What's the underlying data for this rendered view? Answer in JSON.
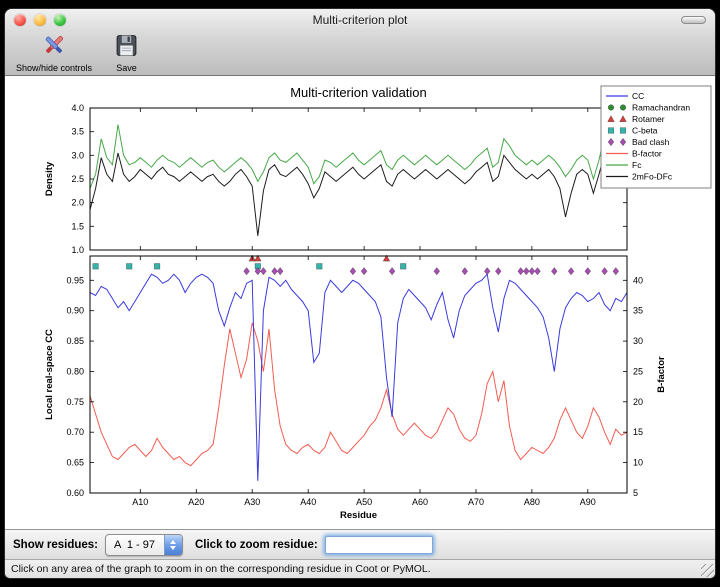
{
  "window": {
    "title": "Multi-criterion plot"
  },
  "toolbar": {
    "buttons": [
      {
        "label": "Show/hide controls",
        "icon": "tools-icon"
      },
      {
        "label": "Save",
        "icon": "save-icon"
      }
    ]
  },
  "controls": {
    "show_residues_label": "Show residues:",
    "residue_range_value": "A  1 - 97",
    "zoom_label": "Click to zoom residue:",
    "zoom_input_value": ""
  },
  "status_bar": {
    "text": "Click on any area of the graph to zoom in on the corresponding residue in Coot or PyMOL."
  },
  "chart_data": {
    "type": "line",
    "title": "Multi-criterion validation",
    "x_range": [
      1,
      97
    ],
    "xlabel": "Residue",
    "x_ticks": [
      {
        "v": 10,
        "label": "A10"
      },
      {
        "v": 20,
        "label": "A20"
      },
      {
        "v": 30,
        "label": "A30"
      },
      {
        "v": 40,
        "label": "A40"
      },
      {
        "v": 50,
        "label": "A50"
      },
      {
        "v": 60,
        "label": "A60"
      },
      {
        "v": 70,
        "label": "A70"
      },
      {
        "v": 80,
        "label": "A80"
      },
      {
        "v": 90,
        "label": "A90"
      }
    ],
    "legend_position": "upper right",
    "legend": [
      {
        "label": "CC",
        "glyph": "line",
        "color": "#3a3ae0"
      },
      {
        "label": "Ramachandran",
        "glyph": "circle",
        "color": "#2e8b2e"
      },
      {
        "label": "Rotamer",
        "glyph": "triangle",
        "color": "#d24040"
      },
      {
        "label": "C-beta",
        "glyph": "square",
        "color": "#36b3ab"
      },
      {
        "label": "Bad clash",
        "glyph": "diamond",
        "color": "#a44fae"
      },
      {
        "label": "B-factor",
        "glyph": "line",
        "color": "#f25c52"
      },
      {
        "label": "Fc",
        "glyph": "line",
        "color": "#47a847"
      },
      {
        "label": "2mFo-DFc",
        "glyph": "line",
        "color": "#1c1c1c"
      }
    ],
    "top": {
      "ylabel": "Density",
      "ylim": [
        1.0,
        4.0
      ],
      "yticks": [
        {
          "v": 4.0,
          "label": "4.0"
        },
        {
          "v": 3.5,
          "label": "3.5"
        },
        {
          "v": 3.0,
          "label": "3.0"
        },
        {
          "v": 2.5,
          "label": "2.5"
        },
        {
          "v": 2.0,
          "label": "2.0"
        },
        {
          "v": 1.5,
          "label": "1.5"
        },
        {
          "v": 1.0,
          "label": "1.0"
        }
      ],
      "series": [
        {
          "name": "Fc",
          "color": "#47a847",
          "values": [
            2.3,
            2.6,
            3.35,
            2.95,
            2.8,
            3.65,
            3.0,
            2.8,
            2.85,
            2.95,
            2.85,
            2.75,
            2.9,
            3.0,
            2.9,
            2.85,
            2.75,
            2.85,
            2.95,
            2.85,
            2.75,
            2.85,
            2.9,
            2.75,
            2.65,
            2.75,
            2.85,
            2.95,
            2.85,
            2.7,
            2.45,
            2.65,
            2.95,
            3.05,
            2.9,
            2.85,
            2.95,
            3.05,
            2.9,
            2.75,
            2.4,
            2.55,
            2.9,
            2.85,
            2.75,
            2.85,
            2.95,
            3.05,
            2.9,
            2.8,
            2.9,
            3.0,
            3.1,
            2.8,
            2.7,
            2.9,
            3.0,
            2.9,
            2.8,
            2.9,
            3.0,
            2.9,
            2.8,
            2.9,
            3.0,
            2.9,
            2.8,
            2.7,
            2.8,
            2.95,
            3.05,
            3.15,
            2.75,
            2.85,
            3.35,
            3.2,
            3.0,
            2.9,
            2.8,
            2.9,
            2.8,
            2.9,
            3.0,
            2.9,
            2.75,
            2.55,
            2.7,
            2.9,
            3.0,
            2.9,
            2.5,
            2.9,
            3.45,
            3.1,
            2.9,
            3.25,
            3.35
          ]
        },
        {
          "name": "2mFo-DFc",
          "color": "#1c1c1c",
          "values": [
            1.85,
            2.3,
            2.95,
            2.6,
            2.45,
            3.05,
            2.6,
            2.45,
            2.55,
            2.7,
            2.6,
            2.5,
            2.65,
            2.75,
            2.6,
            2.55,
            2.45,
            2.55,
            2.65,
            2.55,
            2.45,
            2.55,
            2.6,
            2.45,
            2.35,
            2.45,
            2.6,
            2.7,
            2.55,
            2.35,
            1.3,
            2.25,
            2.7,
            2.8,
            2.6,
            2.55,
            2.65,
            2.75,
            2.6,
            2.4,
            2.1,
            2.3,
            2.65,
            2.55,
            2.45,
            2.55,
            2.65,
            2.75,
            2.6,
            2.5,
            2.6,
            2.7,
            2.8,
            2.45,
            2.35,
            2.6,
            2.7,
            2.6,
            2.5,
            2.6,
            2.7,
            2.6,
            2.5,
            2.6,
            2.7,
            2.6,
            2.5,
            2.4,
            2.5,
            2.65,
            2.75,
            2.85,
            2.45,
            2.55,
            3.0,
            2.85,
            2.7,
            2.6,
            2.5,
            2.6,
            2.5,
            2.6,
            2.7,
            2.55,
            2.3,
            1.7,
            2.2,
            2.6,
            2.7,
            2.6,
            2.2,
            2.6,
            3.05,
            2.75,
            2.6,
            2.9,
            3.0
          ]
        }
      ]
    },
    "bottom": {
      "ylabel": "Local real-space CC",
      "ylabel_right": "B-factor",
      "ylim": [
        0.6,
        0.99
      ],
      "ylim_right": [
        5,
        44
      ],
      "yticks": [
        {
          "v": 0.95,
          "label": "0.95"
        },
        {
          "v": 0.9,
          "label": "0.90"
        },
        {
          "v": 0.85,
          "label": "0.85"
        },
        {
          "v": 0.8,
          "label": "0.80"
        },
        {
          "v": 0.75,
          "label": "0.75"
        },
        {
          "v": 0.7,
          "label": "0.70"
        },
        {
          "v": 0.65,
          "label": "0.65"
        },
        {
          "v": 0.6,
          "label": "0.60"
        }
      ],
      "yticks_right": [
        {
          "v": 40,
          "label": "40"
        },
        {
          "v": 35,
          "label": "35"
        },
        {
          "v": 30,
          "label": "30"
        },
        {
          "v": 25,
          "label": "25"
        },
        {
          "v": 20,
          "label": "20"
        },
        {
          "v": 15,
          "label": "15"
        },
        {
          "v": 10,
          "label": "10"
        },
        {
          "v": 5,
          "label": "5"
        }
      ],
      "series": [
        {
          "name": "B-factor",
          "axis": "right",
          "color": "#f25c52",
          "values": [
            21,
            18,
            15,
            13,
            11,
            10.5,
            11.5,
            12.5,
            13,
            12,
            11,
            12,
            14,
            12.5,
            11.5,
            10.5,
            11,
            10,
            9.5,
            10.5,
            11.5,
            12,
            13,
            19,
            26,
            32,
            28,
            24,
            27,
            33,
            30,
            25,
            32,
            22,
            16,
            13,
            12,
            11.5,
            12.5,
            13,
            12,
            11.5,
            12.5,
            15,
            13.5,
            12,
            11.5,
            12.5,
            13.5,
            14.5,
            16,
            17,
            19,
            22,
            18,
            15.5,
            14.5,
            15.5,
            16.5,
            15.5,
            14.5,
            14,
            15,
            17,
            19,
            18,
            15.5,
            14,
            13.5,
            14.5,
            18,
            23,
            25,
            20,
            23.5,
            16,
            12,
            10.5,
            11.5,
            12.5,
            12,
            11.5,
            12.5,
            14,
            17,
            19,
            17,
            15,
            14,
            16,
            19,
            17.5,
            15,
            13,
            15.5,
            14.5,
            15
          ]
        },
        {
          "name": "CC",
          "axis": "left",
          "color": "#3a3ae0",
          "values": [
            0.93,
            0.925,
            0.94,
            0.935,
            0.92,
            0.905,
            0.915,
            0.9,
            0.915,
            0.93,
            0.945,
            0.96,
            0.955,
            0.945,
            0.95,
            0.96,
            0.95,
            0.93,
            0.945,
            0.955,
            0.96,
            0.955,
            0.945,
            0.9,
            0.875,
            0.905,
            0.93,
            0.92,
            0.945,
            0.95,
            0.62,
            0.9,
            0.955,
            0.95,
            0.94,
            0.95,
            0.935,
            0.925,
            0.915,
            0.9,
            0.815,
            0.83,
            0.93,
            0.95,
            0.94,
            0.93,
            0.94,
            0.95,
            0.945,
            0.935,
            0.925,
            0.915,
            0.89,
            0.79,
            0.725,
            0.88,
            0.92,
            0.935,
            0.925,
            0.915,
            0.905,
            0.885,
            0.91,
            0.93,
            0.885,
            0.855,
            0.9,
            0.925,
            0.935,
            0.945,
            0.95,
            0.96,
            0.905,
            0.865,
            0.92,
            0.95,
            0.945,
            0.935,
            0.925,
            0.915,
            0.905,
            0.89,
            0.855,
            0.8,
            0.87,
            0.905,
            0.92,
            0.93,
            0.925,
            0.915,
            0.92,
            0.93,
            0.91,
            0.9,
            0.92,
            0.915,
            0.93
          ]
        }
      ],
      "markers": [
        {
          "name": "Rotamer",
          "shape": "triangle",
          "color": "#d24040",
          "y": 0.986,
          "residues": [
            30,
            31,
            54
          ]
        },
        {
          "name": "C-beta",
          "shape": "square",
          "color": "#36b3ab",
          "y": 0.973,
          "residues": [
            2,
            8,
            13,
            31,
            42,
            57
          ]
        },
        {
          "name": "Bad clash",
          "shape": "diamond",
          "color": "#a44fae",
          "y": 0.965,
          "residues": [
            29,
            31,
            32,
            34,
            35,
            48,
            50,
            55,
            63,
            68,
            72,
            74,
            78,
            79,
            80,
            81,
            84,
            87,
            90,
            93,
            95
          ]
        },
        {
          "name": "Ramachandran",
          "shape": "circle",
          "color": "#2e8b2e",
          "y": 0.979,
          "residues": []
        }
      ]
    }
  }
}
